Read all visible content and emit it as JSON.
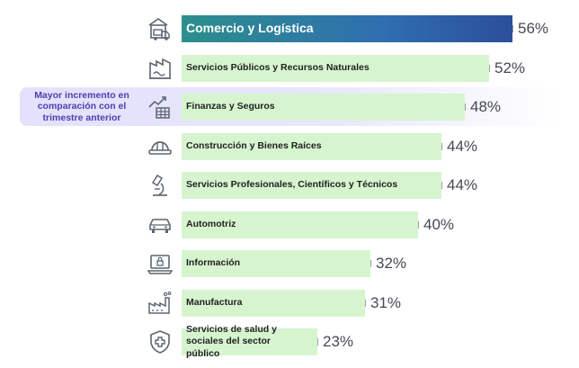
{
  "colors": {
    "bar": "#d6f5cf",
    "highlight_start": "#2c8f8c",
    "highlight_end": "#2c4f9a",
    "callout_bg": "#e3e1fb",
    "callout_text": "#4a3fb0",
    "icon": "#5c6670"
  },
  "callout": {
    "text": "Mayor incremento en comparación con el trimestre anterior"
  },
  "chart_data": {
    "type": "bar",
    "orientation": "horizontal",
    "title": "",
    "xlabel": "",
    "ylabel": "",
    "value_unit": "%",
    "xlim": [
      0,
      56
    ],
    "categories": [
      "Comercio y Logística",
      "Servicios Públicos y Recursos Naturales",
      "Finanzas y Seguros",
      "Construcción y Bienes Raíces",
      "Servicios Profesionales, Científicos y Técnicos",
      "Automotriz",
      "Información",
      "Manufactura",
      "Servicios de salud y sociales del sector público"
    ],
    "values": [
      56,
      52,
      48,
      44,
      44,
      40,
      32,
      31,
      23
    ],
    "labels": [
      "56%",
      "52%",
      "48%",
      "44%",
      "44%",
      "40%",
      "32%",
      "31%",
      "23%"
    ],
    "icons": [
      "truck-warehouse-icon",
      "factory-utilities-icon",
      "finance-chart-icon",
      "hard-hat-icon",
      "microscope-icon",
      "car-icon",
      "laptop-lock-icon",
      "manufacturing-icon",
      "health-shield-icon"
    ],
    "highlight_index": 0,
    "callout_index": 2
  }
}
